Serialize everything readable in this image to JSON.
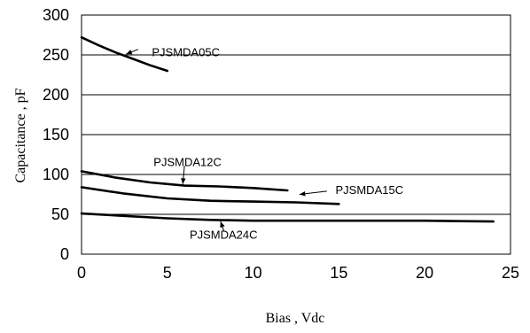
{
  "chart_data": {
    "type": "line",
    "title": "",
    "xlabel": "Bias , Vdc",
    "ylabel": "Capacitance , pF",
    "xlim": [
      0,
      25
    ],
    "ylim": [
      0,
      300
    ],
    "xticks": [
      0,
      5,
      10,
      15,
      20,
      25
    ],
    "yticks": [
      0,
      50,
      100,
      150,
      200,
      250,
      300
    ],
    "grid": "horizontal",
    "series": [
      {
        "name": "PJSMDA05C",
        "x": [
          0,
          1,
          2,
          3,
          4,
          5
        ],
        "y": [
          272,
          262,
          253,
          245,
          237,
          230
        ]
      },
      {
        "name": "PJSMDA12C",
        "x": [
          0,
          2,
          4,
          6,
          8,
          10,
          12
        ],
        "y": [
          104,
          96,
          90,
          86,
          85,
          83,
          80
        ]
      },
      {
        "name": "PJSMDA15C",
        "x": [
          0,
          2.5,
          5,
          7.5,
          10,
          12.5,
          15
        ],
        "y": [
          84,
          76,
          70,
          67,
          66,
          65,
          63
        ]
      },
      {
        "name": "PJSMDA24C",
        "x": [
          0,
          2.5,
          5,
          7.5,
          10,
          15,
          20,
          24
        ],
        "y": [
          51,
          48,
          45,
          43,
          42,
          42,
          42,
          41
        ]
      }
    ]
  }
}
